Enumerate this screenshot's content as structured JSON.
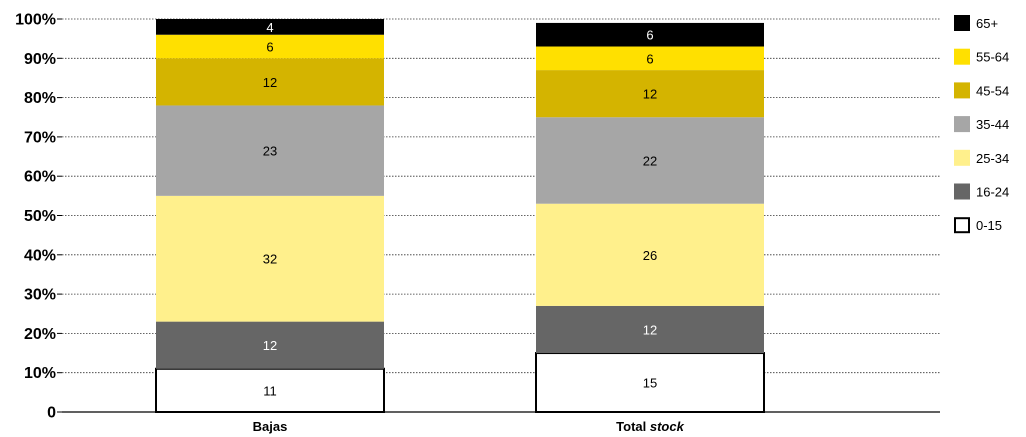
{
  "chart_data": {
    "type": "bar",
    "stacked": true,
    "percent": true,
    "categories": [
      "Bajas",
      "Total stock"
    ],
    "category_labels": [
      {
        "text": "Bajas",
        "italic_part": ""
      },
      {
        "text": "Total ",
        "italic_part": "stock"
      }
    ],
    "ylim": [
      0,
      100
    ],
    "yticks": [
      "0",
      "10%",
      "20%",
      "30%",
      "40%",
      "50%",
      "60%",
      "70%",
      "80%",
      "90%",
      "100%"
    ],
    "grid": true,
    "legend_position": "right",
    "series": [
      {
        "name": "0-15",
        "color": "#ffffff",
        "values": [
          11,
          15
        ],
        "labels": [
          "11",
          "15"
        ],
        "label_color": "#000000",
        "outlined": true
      },
      {
        "name": "16-24",
        "color": "#666666",
        "values": [
          12,
          12
        ],
        "labels": [
          "12",
          "12"
        ],
        "label_color": "#ffffff"
      },
      {
        "name": "25-34",
        "color": "#fff08c",
        "values": [
          32,
          26
        ],
        "labels": [
          "32",
          "26"
        ],
        "label_color": "#000000"
      },
      {
        "name": "35-44",
        "color": "#a6a6a6",
        "values": [
          23,
          22
        ],
        "labels": [
          "23",
          "22"
        ],
        "label_color": "#000000"
      },
      {
        "name": "45-54",
        "color": "#d4b400",
        "values": [
          12,
          12
        ],
        "labels": [
          "12",
          "12"
        ],
        "label_color": "#000000"
      },
      {
        "name": "55-64",
        "color": "#ffe000",
        "values": [
          6,
          6
        ],
        "labels": [
          "6",
          "6"
        ],
        "label_color": "#000000"
      },
      {
        "name": "65+",
        "color": "#000000",
        "values": [
          4,
          6
        ],
        "labels": [
          "4",
          "6"
        ],
        "label_color": "#ffffff"
      }
    ]
  }
}
